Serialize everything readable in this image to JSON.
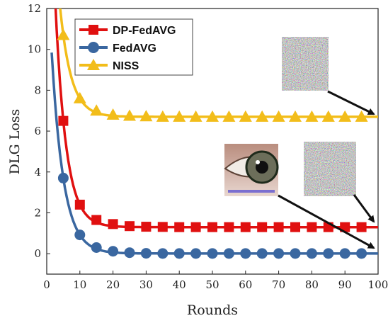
{
  "chart_data": {
    "type": "line",
    "xlabel": "Rounds",
    "ylabel": "DLG Loss",
    "xlim": [
      0,
      100
    ],
    "ylim": [
      -1,
      12
    ],
    "xticks": [
      0,
      10,
      20,
      30,
      40,
      50,
      60,
      70,
      80,
      90,
      100
    ],
    "yticks": [
      0,
      2,
      4,
      6,
      8,
      10,
      12
    ],
    "grid": false,
    "legend_position": "top-left",
    "series": [
      {
        "name": "DP-FedAVG",
        "color": "#e01010",
        "marker": "square",
        "x": [
          5,
          10,
          15,
          20,
          25,
          30,
          35,
          40,
          45,
          50,
          55,
          60,
          65,
          70,
          75,
          80,
          85,
          90,
          95
        ],
        "y": [
          6.5,
          2.4,
          1.65,
          1.45,
          1.35,
          1.32,
          1.31,
          1.3,
          1.3,
          1.3,
          1.3,
          1.3,
          1.3,
          1.3,
          1.3,
          1.3,
          1.3,
          1.3,
          1.3
        ]
      },
      {
        "name": "FedAVG",
        "color": "#3a67a0",
        "marker": "circle",
        "x": [
          5,
          10,
          15,
          20,
          25,
          30,
          35,
          40,
          45,
          50,
          55,
          60,
          65,
          70,
          75,
          80,
          85,
          90,
          95
        ],
        "y": [
          3.7,
          0.92,
          0.3,
          0.12,
          0.05,
          0.02,
          0.01,
          0.01,
          0.01,
          0.01,
          0.01,
          0.01,
          0.01,
          0.01,
          0.01,
          0.01,
          0.01,
          0.01,
          0.01
        ]
      },
      {
        "name": "NISS",
        "color": "#f2bd1a",
        "marker": "triangle",
        "x": [
          5,
          10,
          15,
          20,
          25,
          30,
          35,
          40,
          45,
          50,
          55,
          60,
          65,
          70,
          75,
          80,
          85,
          90,
          95
        ],
        "y": [
          10.7,
          7.6,
          7.0,
          6.8,
          6.75,
          6.72,
          6.7,
          6.7,
          6.7,
          6.7,
          6.7,
          6.7,
          6.7,
          6.7,
          6.7,
          6.7,
          6.7,
          6.7,
          6.7
        ]
      }
    ]
  }
}
